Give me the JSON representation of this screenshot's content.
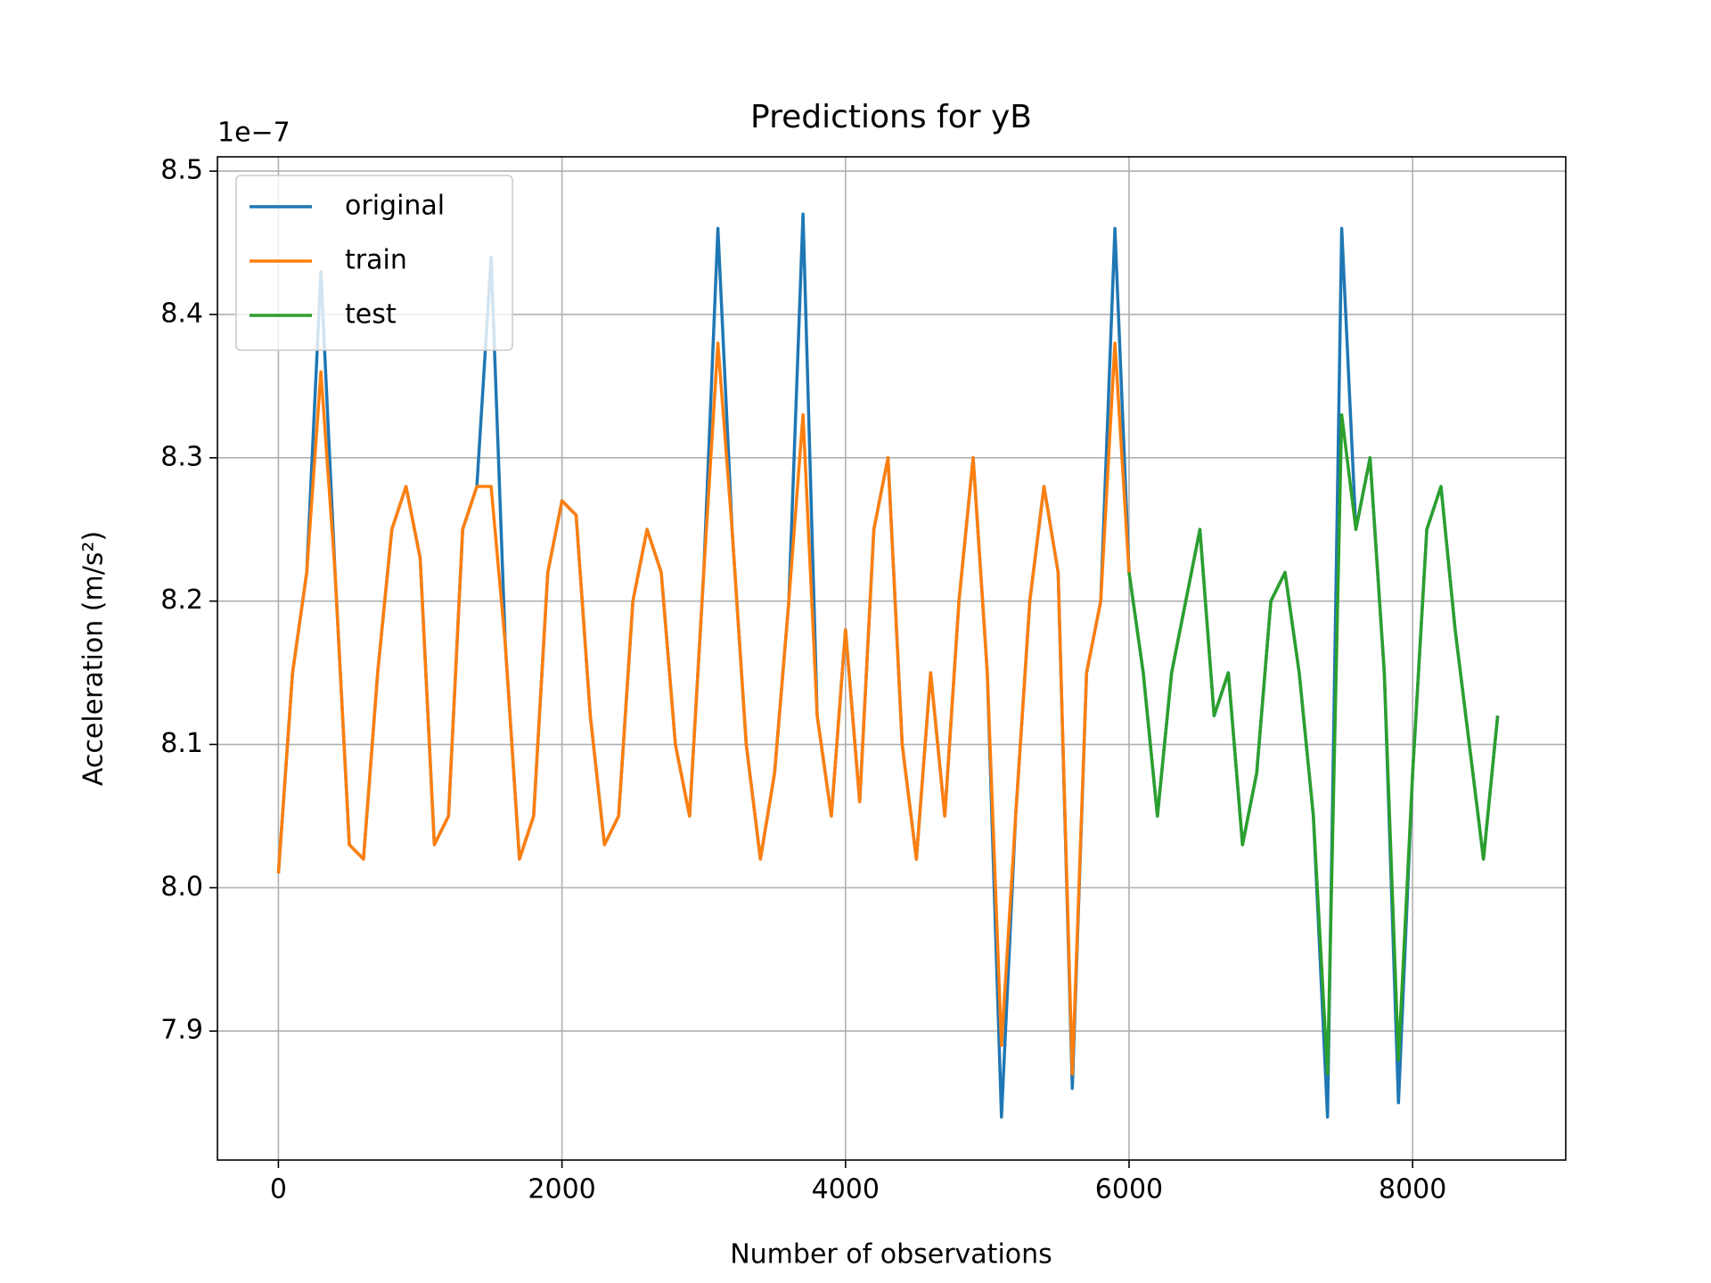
{
  "chart_data": {
    "type": "line",
    "title": "Predictions for yB",
    "x_label": "Number of observations",
    "y_label": "Acceleration (m/s²)",
    "y_offset_label": "1e−7",
    "x": [
      0,
      100,
      200,
      300,
      400,
      500,
      600,
      700,
      800,
      900,
      1000,
      1100,
      1200,
      1300,
      1400,
      1500,
      1600,
      1700,
      1800,
      1900,
      2000,
      2100,
      2200,
      2300,
      2400,
      2500,
      2600,
      2700,
      2800,
      2900,
      3000,
      3100,
      3200,
      3300,
      3400,
      3500,
      3600,
      3700,
      3800,
      3900,
      4000,
      4100,
      4200,
      4300,
      4400,
      4500,
      4600,
      4700,
      4800,
      4900,
      5000,
      5100,
      5200,
      5300,
      5400,
      5500,
      5600,
      5700,
      5800,
      5900,
      6000,
      6100,
      6200,
      6300,
      6400,
      6500,
      6600,
      6700,
      6800,
      6900,
      7000,
      7100,
      7200,
      7300,
      7400,
      7500,
      7600,
      7700,
      7800,
      7900,
      8000,
      8100,
      8200,
      8300,
      8400,
      8500,
      8600
    ],
    "series": [
      {
        "name": "original",
        "color": "#1f77b4",
        "values": [
          8.01,
          8.15,
          8.22,
          8.43,
          8.22,
          8.03,
          8.02,
          8.15,
          8.25,
          8.28,
          8.23,
          8.03,
          8.05,
          8.25,
          8.28,
          8.44,
          8.17,
          8.02,
          8.05,
          8.22,
          8.27,
          8.26,
          8.12,
          8.03,
          8.05,
          8.2,
          8.25,
          8.22,
          8.1,
          8.05,
          8.22,
          8.46,
          8.25,
          8.1,
          8.02,
          8.08,
          8.2,
          8.47,
          8.12,
          8.05,
          8.18,
          8.06,
          8.25,
          8.3,
          8.1,
          8.02,
          8.15,
          8.05,
          8.2,
          8.3,
          8.15,
          7.84,
          8.05,
          8.2,
          8.28,
          8.22,
          7.86,
          8.15,
          8.2,
          8.46,
          8.22,
          8.15,
          8.05,
          8.15,
          8.2,
          8.25,
          8.12,
          8.15,
          8.03,
          8.08,
          8.2,
          8.22,
          8.15,
          8.05,
          7.84,
          8.46,
          8.25,
          8.3,
          8.15,
          7.85,
          8.08,
          8.25,
          8.28,
          8.18,
          8.1,
          8.02,
          8.12
        ]
      },
      {
        "name": "train",
        "color": "#ff7f0e",
        "values": [
          8.01,
          8.15,
          8.22,
          8.36,
          8.22,
          8.03,
          8.02,
          8.15,
          8.25,
          8.28,
          8.23,
          8.03,
          8.05,
          8.25,
          8.28,
          8.28,
          8.17,
          8.02,
          8.05,
          8.22,
          8.27,
          8.26,
          8.12,
          8.03,
          8.05,
          8.2,
          8.25,
          8.22,
          8.1,
          8.05,
          8.22,
          8.38,
          8.25,
          8.1,
          8.02,
          8.08,
          8.2,
          8.33,
          8.12,
          8.05,
          8.18,
          8.06,
          8.25,
          8.3,
          8.1,
          8.02,
          8.15,
          8.05,
          8.2,
          8.3,
          8.15,
          7.89,
          8.05,
          8.2,
          8.28,
          8.22,
          7.87,
          8.15,
          8.2,
          8.38,
          8.22,
          null,
          null,
          null,
          null,
          null,
          null,
          null,
          null,
          null,
          null,
          null,
          null,
          null,
          null,
          null,
          null,
          null,
          null,
          null,
          null,
          null,
          null,
          null,
          null,
          null,
          null
        ]
      },
      {
        "name": "test",
        "color": "#2ca02c",
        "values": [
          null,
          null,
          null,
          null,
          null,
          null,
          null,
          null,
          null,
          null,
          null,
          null,
          null,
          null,
          null,
          null,
          null,
          null,
          null,
          null,
          null,
          null,
          null,
          null,
          null,
          null,
          null,
          null,
          null,
          null,
          null,
          null,
          null,
          null,
          null,
          null,
          null,
          null,
          null,
          null,
          null,
          null,
          null,
          null,
          null,
          null,
          null,
          null,
          null,
          null,
          null,
          null,
          null,
          null,
          null,
          null,
          null,
          null,
          null,
          null,
          8.22,
          8.15,
          8.05,
          8.15,
          8.2,
          8.25,
          8.12,
          8.15,
          8.03,
          8.08,
          8.2,
          8.22,
          8.15,
          8.05,
          7.87,
          8.33,
          8.25,
          8.3,
          8.15,
          7.88,
          8.08,
          8.25,
          8.28,
          8.18,
          8.1,
          8.02,
          8.12
        ]
      }
    ],
    "xlim": [
      -430,
      9080
    ],
    "xticks": [
      0,
      2000,
      4000,
      6000,
      8000
    ],
    "ylim": [
      7.81,
      8.51
    ],
    "yticks": [
      {
        "value": 7.9,
        "label": "7.9"
      },
      {
        "value": 8.0,
        "label": "8.0"
      },
      {
        "value": 8.1,
        "label": "8.1"
      },
      {
        "value": 8.2,
        "label": "8.2"
      },
      {
        "value": 8.3,
        "label": "8.3"
      },
      {
        "value": 8.4,
        "label": "8.4"
      },
      {
        "value": 8.5,
        "label": "8.5"
      }
    ],
    "grid": true,
    "legend": "upper-left"
  }
}
